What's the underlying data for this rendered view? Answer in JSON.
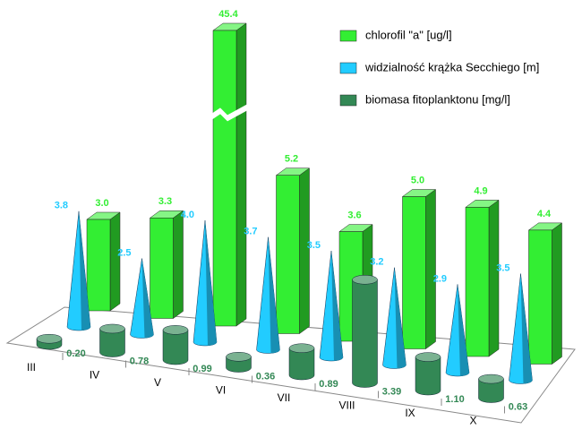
{
  "chart_data": {
    "type": "bar3d",
    "categories": [
      "III",
      "IV",
      "V",
      "VI",
      "VII",
      "VIII",
      "IX",
      "X"
    ],
    "series": [
      {
        "name": "chlorofil \"a\" [ug/l]",
        "color": "#33ee33",
        "shape": "bar",
        "values": [
          3.0,
          3.3,
          45.4,
          5.2,
          3.6,
          5.0,
          4.9,
          4.4
        ],
        "value_labels": [
          "3.0",
          "3.3",
          "45.4",
          "5.2",
          "3.6",
          "5.0",
          "4.9",
          "4.4"
        ]
      },
      {
        "name": "widzialność krążka Secchiego [m]",
        "color": "#22ccff",
        "shape": "cone",
        "values": [
          3.8,
          2.5,
          4.0,
          3.7,
          3.5,
          3.2,
          2.9,
          3.5
        ],
        "value_labels": [
          "3.8",
          "2.5",
          "4.0",
          "3.7",
          "3.5",
          "3.2",
          "2.9",
          "3.5"
        ]
      },
      {
        "name": "biomasa fitoplanktonu [mg/l]",
        "color": "#338855",
        "shape": "cylinder",
        "values": [
          0.2,
          0.78,
          0.99,
          0.36,
          0.89,
          3.39,
          1.1,
          0.63
        ],
        "value_labels": [
          "0.20",
          "0.78",
          "0.99",
          "0.36",
          "0.89",
          "3.39",
          "1.10",
          "0.63"
        ]
      }
    ]
  }
}
